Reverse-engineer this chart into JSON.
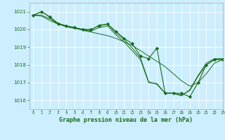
{
  "title": "Graphe pression niveau de la mer (hPa)",
  "bg_color": "#cceeff",
  "grid_color": "#ffffff",
  "line_color": "#1a6b1a",
  "marker_color": "#1a6b1a",
  "ylim": [
    1015.5,
    1021.5
  ],
  "xlim": [
    -0.5,
    23
  ],
  "yticks": [
    1016,
    1017,
    1018,
    1019,
    1020,
    1021
  ],
  "xticks": [
    0,
    1,
    2,
    3,
    4,
    5,
    6,
    7,
    8,
    9,
    10,
    11,
    12,
    13,
    14,
    15,
    16,
    17,
    18,
    19,
    20,
    21,
    22,
    23
  ],
  "curve_marked": {
    "x": [
      0,
      1,
      2,
      3,
      4,
      5,
      6,
      7,
      8,
      9,
      10,
      11,
      12,
      13,
      14,
      15,
      16,
      17,
      18,
      19,
      20,
      21,
      22,
      23
    ],
    "y": [
      1020.8,
      1021.0,
      1020.7,
      1020.3,
      1020.2,
      1020.1,
      1020.0,
      1020.0,
      1020.2,
      1020.3,
      1019.9,
      1019.5,
      1019.2,
      1018.5,
      1018.35,
      1018.95,
      1016.4,
      1016.4,
      1016.4,
      1016.2,
      1017.0,
      1018.0,
      1018.3,
      1018.3
    ]
  },
  "curve_smooth1": {
    "x": [
      0,
      1,
      2,
      3,
      4,
      5,
      6,
      7,
      8,
      9,
      10,
      11,
      12,
      13,
      14,
      15,
      16,
      17,
      18,
      19,
      20,
      21,
      22,
      23
    ],
    "y": [
      1020.8,
      1020.75,
      1020.5,
      1020.3,
      1020.2,
      1020.1,
      1019.95,
      1019.85,
      1019.75,
      1019.65,
      1019.5,
      1019.3,
      1019.1,
      1018.8,
      1018.5,
      1018.2,
      1017.9,
      1017.5,
      1017.1,
      1016.8,
      1017.0,
      1017.5,
      1018.1,
      1018.3
    ]
  },
  "curve_smooth2": {
    "x": [
      0,
      1,
      2,
      3,
      4,
      5,
      6,
      7,
      8,
      9,
      10,
      11,
      12,
      13,
      14,
      15,
      16,
      17,
      18,
      19,
      20,
      21,
      22,
      23
    ],
    "y": [
      1020.8,
      1021.0,
      1020.7,
      1020.35,
      1020.2,
      1020.1,
      1020.0,
      1019.95,
      1020.25,
      1020.3,
      1019.8,
      1019.45,
      1018.95,
      1018.4,
      1017.05,
      1016.9,
      1016.4,
      1016.4,
      1016.3,
      1016.55,
      1017.35,
      1018.0,
      1018.3,
      1018.3
    ]
  },
  "curve_smooth3": {
    "x": [
      0,
      1,
      2,
      3,
      4,
      5,
      6,
      7,
      8,
      9,
      10,
      11,
      12,
      13,
      14,
      15,
      16,
      17,
      18,
      19,
      20,
      21,
      22,
      23
    ],
    "y": [
      1020.8,
      1020.8,
      1020.6,
      1020.3,
      1020.15,
      1020.05,
      1019.97,
      1019.9,
      1020.1,
      1020.2,
      1019.7,
      1019.3,
      1018.8,
      1018.3,
      1017.0,
      1016.95,
      1016.4,
      1016.4,
      1016.25,
      1016.6,
      1017.4,
      1018.1,
      1018.35,
      1018.35
    ]
  }
}
